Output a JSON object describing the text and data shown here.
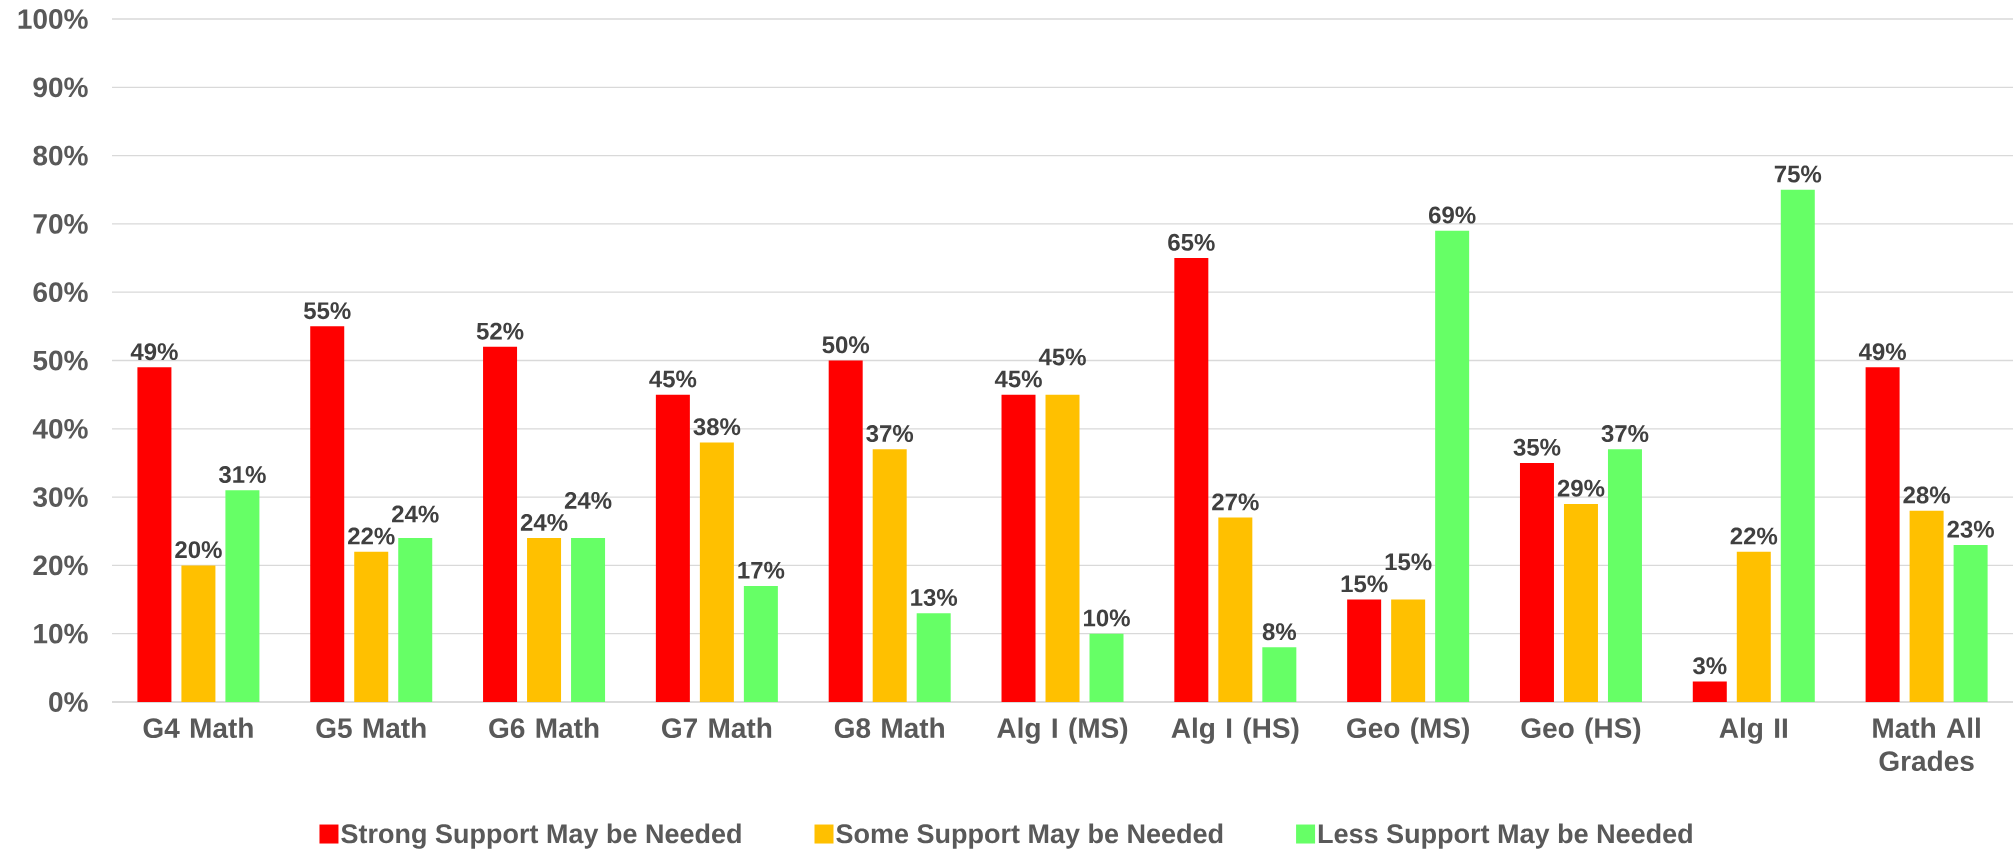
{
  "chart_data": {
    "type": "bar",
    "categories": [
      "G4 Math",
      "G5 Math",
      "G6 Math",
      "G7 Math",
      "G8 Math",
      "Alg I (MS)",
      "Alg I (HS)",
      "Geo (MS)",
      "Geo (HS)",
      "Alg II",
      "Math All Grades"
    ],
    "series": [
      {
        "name": "Strong Support May be Needed",
        "color": "#ff0000",
        "values": [
          49,
          55,
          52,
          45,
          50,
          45,
          65,
          15,
          35,
          3,
          49
        ],
        "value_labels": [
          "49%",
          "55%",
          "52%",
          "45%",
          "50%",
          "45%",
          "65%",
          "15%",
          "35%",
          "3%",
          "49%"
        ]
      },
      {
        "name": "Some Support May be Needed",
        "color": "#ffc000",
        "values": [
          20,
          22,
          24,
          38,
          37,
          45,
          27,
          15,
          29,
          22,
          28
        ],
        "value_labels": [
          "20%",
          "22%",
          "24%",
          "38%",
          "37%",
          "45%",
          "27%",
          "15%",
          "29%",
          "22%",
          "28%"
        ]
      },
      {
        "name": "Less Support May be Needed",
        "color": "#66ff66",
        "values": [
          31,
          24,
          24,
          17,
          13,
          10,
          8,
          69,
          37,
          75,
          23
        ],
        "value_labels": [
          "31%",
          "24%",
          "24%",
          "17%",
          "13%",
          "10%",
          "8%",
          "69%",
          "37%",
          "75%",
          "23%"
        ]
      }
    ],
    "ylim": [
      0,
      100
    ],
    "yticks": [
      {
        "value": 0,
        "label": "0%"
      },
      {
        "value": 10,
        "label": "10%"
      },
      {
        "value": 20,
        "label": "20%"
      },
      {
        "value": 30,
        "label": "30%"
      },
      {
        "value": 40,
        "label": "40%"
      },
      {
        "value": 50,
        "label": "50%"
      },
      {
        "value": 60,
        "label": "60%"
      },
      {
        "value": 70,
        "label": "70%"
      },
      {
        "value": 80,
        "label": "80%"
      },
      {
        "value": 90,
        "label": "90%"
      },
      {
        "value": 100,
        "label": "100%"
      }
    ],
    "grid": "y",
    "legend": "bottom"
  }
}
